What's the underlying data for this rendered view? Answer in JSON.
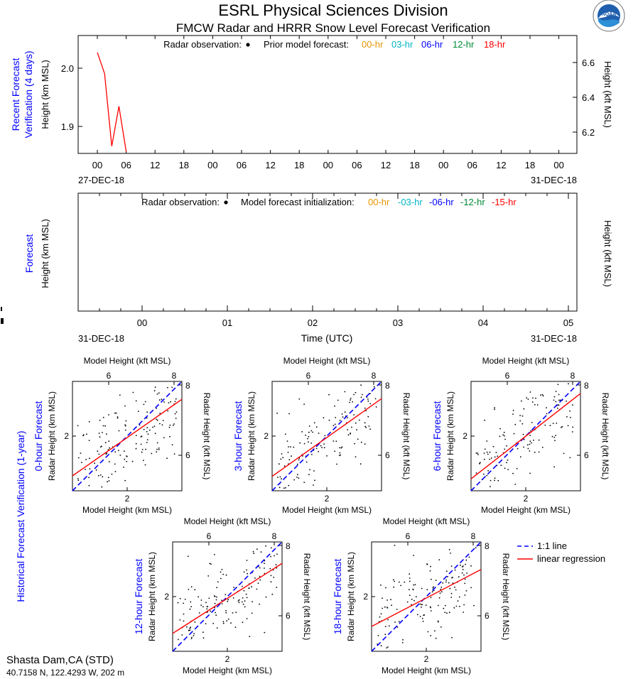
{
  "header": {
    "title": "ESRL Physical Sciences Division",
    "subtitle": "FMCW Radar and HRRR Snow Level Forecast Verification",
    "logo_text": "NOAA"
  },
  "colors": {
    "hr00": "#e69500",
    "hr03": "#00b5c4",
    "hr06": "#0000ff",
    "hr12": "#008a35",
    "hr18": "#ff0000",
    "panel_label": "#0000ff",
    "regression": "#ff0000",
    "one_to_one": "#0000ff",
    "points": "#000000"
  },
  "station": {
    "name": "Shasta Dam,CA (STD)",
    "coords": "40.7158 N, 122.4293 W, 202 m"
  },
  "recent": {
    "side_label_1": "Recent Forecast",
    "side_label_2": "Verification (4 days)",
    "ylabel_left": "Height (km MSL)",
    "ylabel_right": "Height (kft MSL)",
    "legend_obs": "Radar observation:",
    "legend_prior": "Prior model forecast:",
    "legend_items": [
      "00-hr",
      "03-hr",
      "06-hr",
      "12-hr",
      "18-hr"
    ],
    "x_ticks": [
      "00",
      "06",
      "12",
      "18",
      "00",
      "06",
      "12",
      "18",
      "00",
      "06",
      "12",
      "18",
      "00",
      "06",
      "12",
      "18",
      "00"
    ],
    "date_start": "27-DEC-18",
    "date_end": "31-DEC-18",
    "y_ticks_left": [
      "1.9",
      "2.0"
    ],
    "y_ticks_right": [
      "6.2",
      "6.4",
      "6.6"
    ]
  },
  "forecast": {
    "side_label": "Forecast",
    "ylabel_left": "Height (km MSL)",
    "ylabel_right": "Height (kft MSL)",
    "legend_obs": "Radar observation:",
    "legend_init": "Model forecast initialization:",
    "legend_items": [
      "00-hr",
      "-03-hr",
      "-06-hr",
      "-12-hr",
      "-15-hr"
    ],
    "x_ticks": [
      "00",
      "01",
      "02",
      "03",
      "04",
      "05"
    ],
    "date_start": "31-DEC-18",
    "date_end": "31-DEC-18",
    "xlabel": "Time (UTC)"
  },
  "historical": {
    "side_label": "Historical Forecast Verification (1-year)",
    "legend_one_to_one": "1:1 line",
    "legend_regression": "linear regression",
    "top_axis_label": "Model Height (kft MSL)",
    "bottom_axis_label": "Model Height (km MSL)",
    "left_axis_label": "Radar Height (km MSL)",
    "right_axis_label": "Radar Height (kft MSL)",
    "top_ticks": [
      "6",
      "8"
    ],
    "bottom_ticks": [
      "2"
    ],
    "left_ticks": [
      "2"
    ],
    "right_ticks": [
      "6",
      "8"
    ],
    "panels": [
      {
        "title": "0-hour Forecast"
      },
      {
        "title": "3-hour Forecast"
      },
      {
        "title": "6-hour Forecast"
      },
      {
        "title": "12-hour Forecast"
      },
      {
        "title": "18-hour Forecast"
      }
    ]
  },
  "chart_data": [
    {
      "type": "line",
      "title": "Recent Forecast Verification (4 days)",
      "xlabel": "",
      "ylabel": "Height (km MSL)",
      "ylim": [
        1.865,
        2.06
      ],
      "x_range_hours": [
        -6,
        96
      ],
      "series": [
        {
          "name": "18-hr",
          "color": "#ff0000",
          "x": [
            0,
            1.5,
            3,
            4.5,
            6
          ],
          "y": [
            2.032,
            1.997,
            1.877,
            1.943,
            1.868
          ]
        }
      ]
    },
    {
      "type": "line",
      "title": "Forecast",
      "xlabel": "Time (UTC)",
      "ylabel": "Height (km MSL)",
      "series": []
    },
    {
      "type": "scatter",
      "title": "0-hour Forecast",
      "xlabel": "Model Height (km MSL)",
      "ylabel": "Radar Height (km MSL)",
      "xlim": [
        1.5,
        2.6
      ],
      "ylim": [
        1.5,
        2.6
      ],
      "regression": {
        "slope": 0.7,
        "intercept": 0.6
      }
    },
    {
      "type": "scatter",
      "title": "3-hour Forecast",
      "xlabel": "Model Height (km MSL)",
      "ylabel": "Radar Height (km MSL)",
      "xlim": [
        1.5,
        2.6
      ],
      "ylim": [
        1.5,
        2.6
      ],
      "regression": {
        "slope": 0.71,
        "intercept": 0.58
      }
    },
    {
      "type": "scatter",
      "title": "6-hour Forecast",
      "xlabel": "Model Height (km MSL)",
      "ylabel": "Radar Height (km MSL)",
      "xlim": [
        1.5,
        2.6
      ],
      "ylim": [
        1.5,
        2.6
      ],
      "regression": {
        "slope": 0.78,
        "intercept": 0.45
      }
    },
    {
      "type": "scatter",
      "title": "12-hour Forecast",
      "xlabel": "Model Height (km MSL)",
      "ylabel": "Radar Height (km MSL)",
      "xlim": [
        1.5,
        2.6
      ],
      "ylim": [
        1.5,
        2.6
      ],
      "regression": {
        "slope": 0.64,
        "intercept": 0.72
      }
    },
    {
      "type": "scatter",
      "title": "18-hour Forecast",
      "xlabel": "Model Height (km MSL)",
      "ylabel": "Radar Height (km MSL)",
      "xlim": [
        1.5,
        2.6
      ],
      "ylim": [
        1.5,
        2.6
      ],
      "regression": {
        "slope": 0.52,
        "intercept": 0.97
      }
    }
  ]
}
